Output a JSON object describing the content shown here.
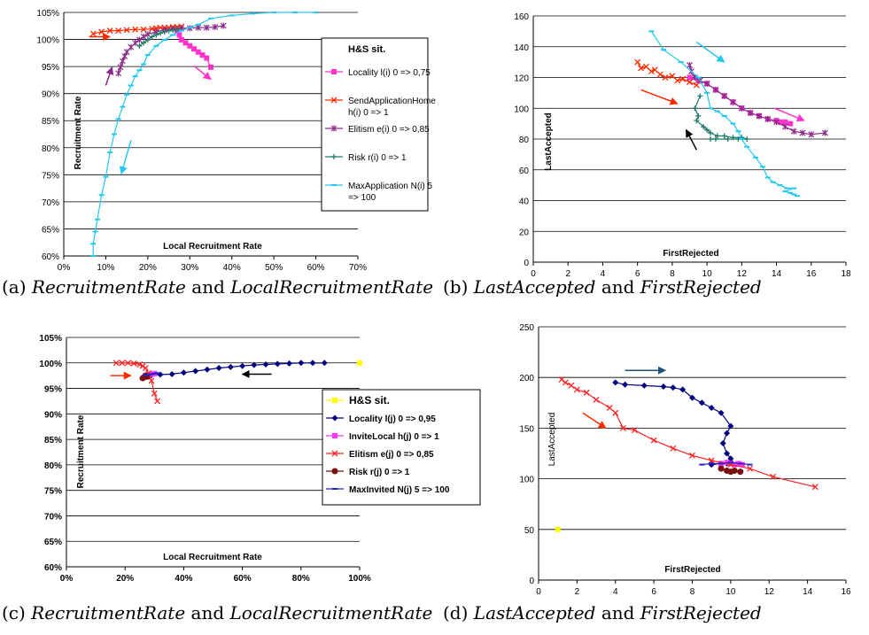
{
  "captions": [
    {
      "label": "(a)",
      "a": "RecruitmentRate",
      "mid": "and",
      "b": "LocalRecruitmentRate"
    },
    {
      "label": "(b)",
      "a": "LastAccepted",
      "mid": "and",
      "b": "FirstRejected"
    },
    {
      "label": "(c)",
      "a": "RecruitmentRate",
      "mid": "and",
      "b": "LocalRecruitmentRate"
    },
    {
      "label": "(d)",
      "a": "LastAccepted",
      "mid": "and",
      "b": "FirstRejected"
    }
  ],
  "colors": {
    "locality": "#ff33cc",
    "sendhome": "#ff2a00",
    "elitism_a": "#8a2a8a",
    "risk_a": "#1f7a6a",
    "maxapp": "#22c8f0",
    "hs": "#ffff00",
    "locality_j": "#000080",
    "invite": "#ff33ff",
    "elitism_j": "#ff2222",
    "risk_j": "#7a1010",
    "maxinv": "#2222cc",
    "arrow_pink": "#ff33cc",
    "arrow_red": "#ff2a00",
    "arrow_purple": "#8a2a8a",
    "arrow_cyan": "#22c8f0",
    "arrow_black": "#000000",
    "arrow_blue": "#1f4e79"
  },
  "chart_data": [
    {
      "id": "a",
      "type": "line",
      "xlabel": "Local Recruitment Rate",
      "ylabel": "Recruitment Rate",
      "xlim": [
        0,
        70
      ],
      "ylim": [
        60,
        100
      ],
      "xticks": [
        "0%",
        "10%",
        "20%",
        "30%",
        "40%",
        "50%",
        "60%",
        "70%"
      ],
      "yticks": [
        "60%",
        "65%",
        "70%",
        "75%",
        "80%",
        "85%",
        "90%",
        "95%",
        "100%",
        "105%"
      ],
      "grid": "horizontal",
      "legend_title": "H&S sit.",
      "legend_placement": "right",
      "series": [
        {
          "name": "Locality l(i) 0 => 0,75",
          "color": "locality",
          "marker": "square",
          "x": [
            27,
            27.5,
            28,
            29,
            30,
            31,
            32,
            33,
            34,
            35
          ],
          "y": [
            97,
            96.3,
            95.5,
            95,
            94.5,
            94,
            93.5,
            93,
            92.5,
            91
          ]
        },
        {
          "name": "SendApplicationHome h(i) 0 => 1",
          "color": "sendhome",
          "marker": "x",
          "x": [
            7,
            9,
            11,
            13,
            15,
            17,
            19,
            21,
            22,
            23,
            24,
            25,
            26,
            27,
            28
          ],
          "y": [
            96.5,
            96.8,
            97,
            97,
            97.1,
            97.2,
            97.2,
            97.3,
            97.4,
            97.5,
            97.5,
            97.5,
            97.6,
            97.6,
            97.7
          ]
        },
        {
          "name": "Elitism e(i) 0 => 0,85",
          "color": "elitism_a",
          "marker": "star",
          "x": [
            13,
            13.5,
            14,
            14.5,
            15,
            16,
            17,
            18,
            19,
            20,
            22,
            24,
            26,
            28,
            30,
            32,
            34,
            36,
            38
          ],
          "y": [
            90,
            91,
            92,
            92.8,
            93.5,
            94.3,
            95,
            95.5,
            96,
            96.4,
            96.8,
            97.1,
            97.3,
            97.4,
            97.4,
            97.5,
            97.5,
            97.6,
            97.8
          ]
        },
        {
          "name": "Risk r(i) 0 => 1",
          "color": "risk_a",
          "marker": "plus",
          "x": [
            18,
            19,
            20,
            21,
            22,
            23,
            24,
            25,
            26,
            27
          ],
          "y": [
            94.5,
            95,
            95.5,
            96,
            96.3,
            96.6,
            96.8,
            97,
            97.1,
            97.2
          ]
        },
        {
          "name": "MaxApplication N(i) 5 => 100",
          "color": "maxapp",
          "marker": "dash",
          "x": [
            7,
            7,
            7.5,
            8,
            9,
            10,
            11,
            12,
            13,
            14,
            15,
            16,
            17,
            18,
            19,
            20,
            22,
            24,
            26,
            28,
            30,
            32,
            35,
            40,
            45,
            50,
            55,
            60
          ],
          "y": [
            60,
            62,
            64,
            66,
            70,
            73,
            77,
            80,
            82.5,
            84.5,
            86.5,
            88,
            89.5,
            90.5,
            91.5,
            93,
            94.5,
            95.5,
            96.3,
            97,
            97.5,
            98,
            99,
            99.5,
            99.8,
            100,
            100,
            100
          ]
        }
      ],
      "arrows": [
        {
          "color": "arrow_red",
          "from": [
            6,
            96
          ],
          "to": [
            11,
            96
          ]
        },
        {
          "color": "arrow_pink",
          "from": [
            31,
            91.2
          ],
          "to": [
            35,
            89
          ]
        },
        {
          "color": "arrow_purple",
          "from": [
            10,
            88
          ],
          "to": [
            11.5,
            91
          ]
        },
        {
          "color": "arrow_cyan",
          "from": [
            16,
            79
          ],
          "to": [
            13.7,
            73.5
          ]
        }
      ]
    },
    {
      "id": "b",
      "type": "line",
      "xlabel": "FirstRejected",
      "ylabel": "LastAccepted",
      "xlim": [
        0,
        18
      ],
      "ylim": [
        0,
        160
      ],
      "xticks": [
        "0",
        "2",
        "4",
        "6",
        "8",
        "10",
        "12",
        "14",
        "16",
        "18"
      ],
      "yticks": [
        "0",
        "20",
        "40",
        "60",
        "80",
        "100",
        "120",
        "140",
        "160"
      ],
      "grid": "horizontal",
      "series": [
        {
          "color": "locality",
          "marker": "square",
          "x": [
            9,
            9.5,
            10,
            10.5,
            11,
            11.5,
            12,
            12.5,
            13,
            13.5,
            14,
            14.3,
            14.5,
            14.8
          ],
          "y": [
            120,
            118,
            116,
            112,
            108,
            104,
            100,
            97,
            95,
            93,
            92,
            91,
            91,
            90
          ]
        },
        {
          "color": "sendhome",
          "marker": "x",
          "x": [
            6,
            6.2,
            6.5,
            6.8,
            7,
            7.3,
            7.6,
            8,
            8.3,
            8.6,
            9,
            9.4
          ],
          "y": [
            130,
            126,
            127,
            124,
            125,
            122,
            120,
            121,
            118,
            119,
            117,
            115
          ]
        },
        {
          "color": "elitism_a",
          "marker": "star",
          "x": [
            9,
            9.1,
            9.3,
            9.6,
            10,
            10.5,
            11,
            11.5,
            12,
            12.5,
            13,
            13.5,
            14,
            14.5,
            15,
            15.5,
            16,
            16.8
          ],
          "y": [
            128,
            124,
            120,
            118,
            116,
            112,
            108,
            104,
            100,
            97,
            95,
            93,
            91,
            88,
            85,
            84,
            83,
            84
          ]
        },
        {
          "color": "risk_a",
          "marker": "plus",
          "x": [
            9.6,
            9.3,
            9.5,
            9.4,
            9.8,
            10,
            10.2,
            10.6,
            11,
            11.5,
            12,
            12.3,
            11.8,
            11.2,
            10.5,
            10.2
          ],
          "y": [
            108,
            100,
            95,
            92,
            88,
            86,
            84,
            82,
            82,
            81,
            81,
            80,
            80,
            80,
            80,
            80
          ]
        },
        {
          "color": "maxapp",
          "marker": "dash",
          "x": [
            6.8,
            7.5,
            8.5,
            9.5,
            10,
            10.2,
            10.6,
            11,
            11.5,
            11.8,
            12,
            12.3,
            12.8,
            13.2,
            13.5,
            13.8,
            14.2,
            14.6,
            15,
            14.5,
            15,
            14.8,
            15.2
          ],
          "y": [
            150,
            138,
            130,
            120,
            110,
            100,
            98,
            95,
            90,
            85,
            80,
            75,
            68,
            62,
            55,
            52,
            50,
            48,
            48,
            46,
            44,
            45,
            43
          ]
        }
      ],
      "arrows": [
        {
          "color": "arrow_red",
          "from": [
            6.2,
            112
          ],
          "to": [
            8.3,
            103
          ]
        },
        {
          "color": "arrow_pink",
          "from": [
            13.9,
            100
          ],
          "to": [
            15.6,
            92
          ]
        },
        {
          "color": "arrow_cyan",
          "from": [
            9.4,
            143
          ],
          "to": [
            11,
            130
          ]
        },
        {
          "color": "arrow_black",
          "from": [
            9.4,
            73
          ],
          "to": [
            8.8,
            86
          ]
        }
      ]
    },
    {
      "id": "c",
      "type": "line",
      "xlabel": "Local Recruitment Rate",
      "ylabel": "Recruitment Rate",
      "xlim": [
        0,
        100
      ],
      "ylim": [
        60,
        105
      ],
      "xticks": [
        "0%",
        "20%",
        "40%",
        "60%",
        "80%",
        "100%"
      ],
      "yticks": [
        "60%",
        "65%",
        "70%",
        "75%",
        "80%",
        "85%",
        "90%",
        "95%",
        "100%",
        "105%"
      ],
      "grid": "horizontal",
      "legend_title": "H&S sit.",
      "legend_placement": "right",
      "series": [
        {
          "name": "H&S sit.",
          "color": "hs",
          "marker": "square",
          "x": [
            100
          ],
          "y": [
            100
          ]
        },
        {
          "name": "Locality l(j) 0 => 0,95",
          "color": "locality_j",
          "marker": "diamond",
          "x": [
            29,
            32,
            36,
            40,
            44,
            48,
            52,
            56,
            60,
            64,
            68,
            72,
            76,
            80,
            84,
            88
          ],
          "y": [
            97.6,
            97.7,
            97.8,
            98.1,
            98.4,
            98.7,
            99,
            99.2,
            99.4,
            99.6,
            99.7,
            99.8,
            99.9,
            100,
            100,
            100
          ]
        },
        {
          "name": "InviteLocal h(j) 0 => 1",
          "color": "invite",
          "marker": "square",
          "x": [
            27,
            28,
            29,
            30
          ],
          "y": [
            97.5,
            97.7,
            97.8,
            97.9
          ]
        },
        {
          "name": "Elitism e(j) 0 => 0,85",
          "color": "elitism_j",
          "marker": "x",
          "x": [
            17,
            19,
            21,
            23,
            25,
            26,
            27,
            28,
            29,
            30,
            31
          ],
          "y": [
            100,
            100,
            100,
            99.9,
            99.7,
            99.4,
            99,
            98,
            96.5,
            94,
            92.5
          ]
        },
        {
          "name": "Risk r(j) 0 => 1",
          "color": "risk_j",
          "marker": "circle",
          "x": [
            26,
            26.5,
            27,
            27.5
          ],
          "y": [
            97,
            97.2,
            97.5,
            97.3
          ]
        },
        {
          "name": "MaxInvited N(j) 5 => 100",
          "color": "maxinv",
          "marker": "dash",
          "x": [
            27,
            28,
            29,
            30,
            31
          ],
          "y": [
            97.6,
            97.7,
            97.8,
            97.9,
            98
          ]
        }
      ],
      "arrows": [
        {
          "color": "arrow_red",
          "from": [
            15,
            97.5
          ],
          "to": [
            22,
            97.5
          ]
        },
        {
          "color": "arrow_black",
          "from": [
            70,
            97.8
          ],
          "to": [
            60,
            97.8
          ]
        }
      ]
    },
    {
      "id": "d",
      "type": "line",
      "xlabel": "FirstRejected",
      "ylabel": "LastAccepted",
      "xlim": [
        0,
        16
      ],
      "ylim": [
        0,
        250
      ],
      "xticks": [
        "0",
        "2",
        "4",
        "6",
        "8",
        "10",
        "12",
        "14",
        "16"
      ],
      "yticks": [
        "0",
        "50",
        "100",
        "150",
        "200",
        "250"
      ],
      "grid": "horizontal",
      "series": [
        {
          "color": "hs",
          "marker": "square",
          "x": [
            1
          ],
          "y": [
            50
          ]
        },
        {
          "color": "locality_j",
          "marker": "diamond",
          "x": [
            4,
            4.5,
            5.5,
            6.5,
            7,
            7.5,
            8,
            8.5,
            9,
            9.5,
            10,
            9.8,
            9.6,
            9.8,
            10,
            10,
            9.8,
            9.5,
            9
          ],
          "y": [
            195,
            193,
            192,
            191,
            190,
            188,
            180,
            175,
            170,
            165,
            152,
            145,
            135,
            125,
            120,
            117,
            115,
            115,
            114
          ]
        },
        {
          "color": "invite",
          "marker": "square",
          "x": [
            9.5,
            9.8,
            10,
            10.2,
            10.4,
            10.6
          ],
          "y": [
            115,
            116,
            115,
            114,
            115,
            114
          ]
        },
        {
          "color": "elitism_j",
          "marker": "x",
          "x": [
            1.2,
            1.4,
            1.7,
            2,
            2.5,
            3,
            3.7,
            4,
            4.4,
            5,
            6,
            7,
            8,
            9,
            10,
            11,
            12.2,
            14.4
          ],
          "y": [
            198,
            195,
            192,
            188,
            185,
            178,
            170,
            165,
            150,
            148,
            138,
            130,
            123,
            118,
            114,
            110,
            102,
            92
          ]
        },
        {
          "color": "risk_j",
          "marker": "circle",
          "x": [
            9.5,
            9.8,
            10,
            10.2,
            10.5
          ],
          "y": [
            110,
            108,
            107,
            108,
            107
          ]
        },
        {
          "color": "maxinv",
          "marker": "dash",
          "x": [
            8.5,
            9,
            9.5,
            10,
            10.5,
            11
          ],
          "y": [
            114,
            115,
            115,
            116,
            115,
            114
          ]
        }
      ],
      "arrows": [
        {
          "color": "arrow_red",
          "from": [
            2.3,
            165
          ],
          "to": [
            3.5,
            150
          ]
        },
        {
          "color": "arrow_blue",
          "from": [
            4.5,
            207
          ],
          "to": [
            6.6,
            207
          ]
        }
      ]
    }
  ]
}
